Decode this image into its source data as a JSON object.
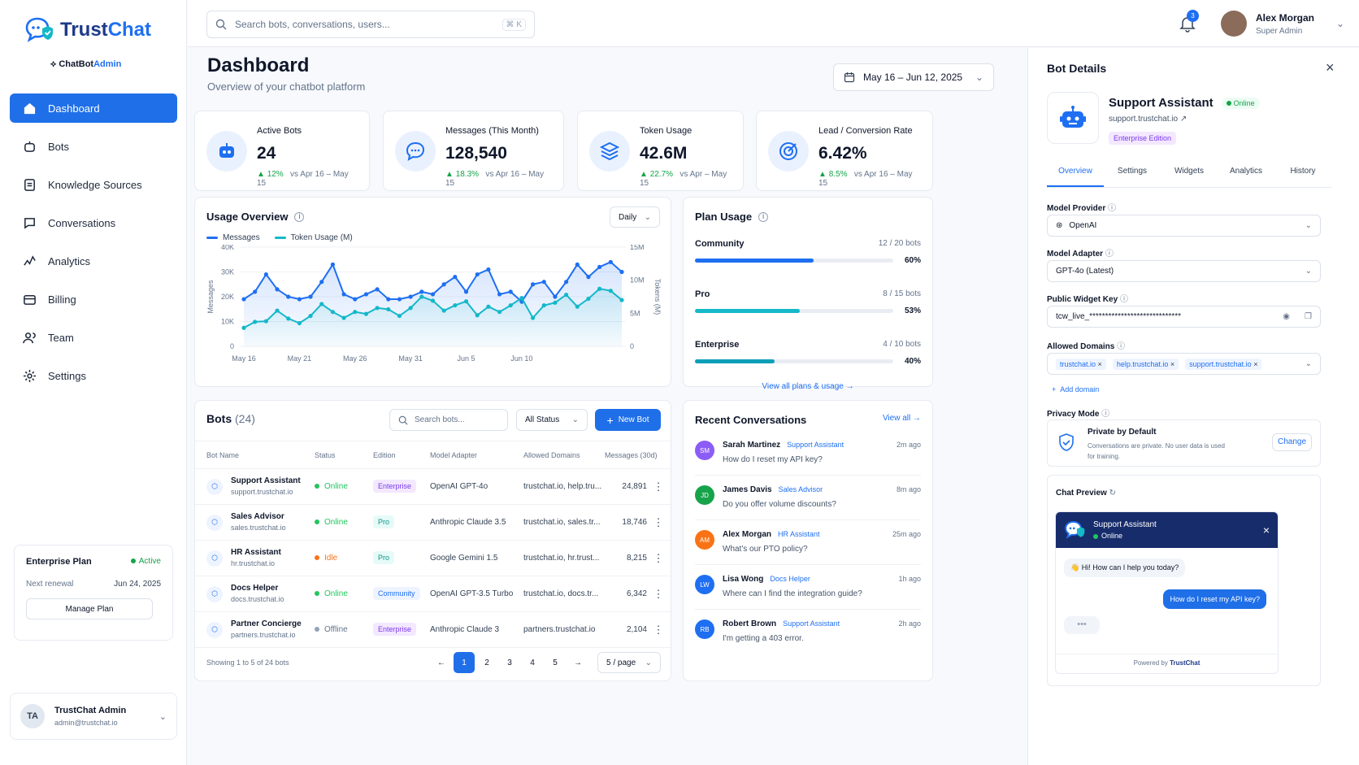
{
  "brand": {
    "name_a": "Trust",
    "name_b": "Chat",
    "sub_a": "ChatBot",
    "sub_b": "Admin"
  },
  "nav": [
    {
      "label": "Dashboard",
      "icon": "home-icon"
    },
    {
      "label": "Bots",
      "icon": "bot-icon"
    },
    {
      "label": "Knowledge Sources",
      "icon": "document-icon"
    },
    {
      "label": "Conversations",
      "icon": "chat-icon"
    },
    {
      "label": "Analytics",
      "icon": "analytics-icon"
    },
    {
      "label": "Billing",
      "icon": "billing-icon"
    },
    {
      "label": "Team",
      "icon": "team-icon"
    },
    {
      "label": "Settings",
      "icon": "gear-icon"
    }
  ],
  "plan": {
    "name": "Enterprise Plan",
    "status": "Active",
    "renew_label": "Next renewal",
    "renew_date": "Jun 24, 2025",
    "button": "Manage Plan"
  },
  "account": {
    "initials": "TA",
    "name": "TrustChat Admin",
    "email": "admin@trustchat.io"
  },
  "topbar": {
    "search_placeholder": "Search bots, conversations, users...",
    "shortcut": "⌘ K",
    "notif_count": "3",
    "user_name": "Alex Morgan",
    "user_role": "Super Admin"
  },
  "page": {
    "title": "Dashboard",
    "subtitle": "Overview of your chatbot platform",
    "date_range": "May 16 – Jun 12, 2025"
  },
  "kpis": [
    {
      "label": "Active Bots",
      "value": "24",
      "delta": "12%",
      "compare": "vs Apr 16 – May 15"
    },
    {
      "label": "Messages (This Month)",
      "value": "128,540",
      "delta": "18.3%",
      "compare": "vs Apr 16 – May 15"
    },
    {
      "label": "Token Usage",
      "value": "42.6M",
      "delta": "22.7%",
      "compare": "vs Apr – May 15"
    },
    {
      "label": "Lead / Conversion Rate",
      "value": "6.42%",
      "delta": "8.5%",
      "compare": "vs Apr 16 – May 15"
    }
  ],
  "usage": {
    "title": "Usage Overview",
    "period": "Daily"
  },
  "chart_data": {
    "type": "line",
    "series": [
      {
        "name": "Messages",
        "axis": "left",
        "color": "#1e6ff2",
        "values": [
          19,
          22,
          29,
          23,
          20,
          19,
          20,
          26,
          33,
          21,
          19,
          21,
          23,
          19,
          19,
          20,
          22,
          21,
          25,
          28,
          22,
          29,
          31,
          21,
          22,
          18,
          25,
          26,
          20,
          26,
          33,
          28,
          32,
          34,
          30
        ]
      },
      {
        "name": "Token Usage (M)",
        "axis": "right",
        "color": "#14b8c9",
        "values": [
          2.8,
          3.7,
          3.8,
          5.4,
          4.2,
          3.5,
          4.6,
          6.4,
          5.2,
          4.3,
          5.2,
          4.9,
          5.8,
          5.6,
          4.6,
          5.8,
          7.5,
          6.9,
          5.4,
          6.2,
          6.8,
          4.7,
          6.0,
          5.2,
          6.2,
          7.3,
          4.3,
          6.2,
          6.6,
          7.8,
          6.0,
          7.2,
          8.7,
          8.4,
          7.0
        ]
      }
    ],
    "x_ticks": [
      "May 16",
      "May 21",
      "May 26",
      "May 31",
      "Jun 5",
      "Jun 10"
    ],
    "ylabel": "Messages",
    "y2label": "Tokens (M)",
    "y_ticks": [
      "40K",
      "30K",
      "20K",
      "10K",
      "0"
    ],
    "y2_ticks": [
      "15M",
      "10M",
      "5M",
      "0"
    ],
    "ylim": [
      0,
      40000
    ],
    "y2lim": [
      0,
      15
    ]
  },
  "plan_usage": {
    "title": "Plan Usage",
    "link": "View all plans & usage",
    "rows": [
      {
        "name": "Community",
        "count": "12 / 20 bots",
        "pct": "60%",
        "frac": 0.6,
        "color": "#1e6ff2"
      },
      {
        "name": "Pro",
        "count": "8 / 15 bots",
        "pct": "53%",
        "frac": 0.53,
        "color": "#14b8c9"
      },
      {
        "name": "Enterprise",
        "count": "4 / 10 bots",
        "pct": "40%",
        "frac": 0.4,
        "color": "#0e9fb8"
      }
    ]
  },
  "bots": {
    "title": "Bots",
    "count": "(24)",
    "search_placeholder": "Search bots...",
    "status_filter": "All Status",
    "new_button": "New Bot",
    "columns": [
      "Bot Name",
      "Status",
      "Edition",
      "Model Adapter",
      "Allowed Domains",
      "Messages (30d)"
    ],
    "rows": [
      {
        "name": "Support Assistant",
        "domain": "support.trustchat.io",
        "status": "Online",
        "edition": "Enterprise",
        "model": "OpenAI GPT-4o",
        "domains": "trustchat.io, help.tru...",
        "messages": "24,891"
      },
      {
        "name": "Sales Advisor",
        "domain": "sales.trustchat.io",
        "status": "Online",
        "edition": "Pro",
        "model": "Anthropic Claude 3.5",
        "domains": "trustchat.io, sales.tr...",
        "messages": "18,746"
      },
      {
        "name": "HR Assistant",
        "domain": "hr.trustchat.io",
        "status": "Idle",
        "edition": "Pro",
        "model": "Google Gemini 1.5",
        "domains": "trustchat.io, hr.trust...",
        "messages": "8,215"
      },
      {
        "name": "Docs Helper",
        "domain": "docs.trustchat.io",
        "status": "Online",
        "edition": "Community",
        "model": "OpenAI GPT-3.5 Turbo",
        "domains": "trustchat.io, docs.tr...",
        "messages": "6,342"
      },
      {
        "name": "Partner Concierge",
        "domain": "partners.trustchat.io",
        "status": "Offline",
        "edition": "Enterprise",
        "model": "Anthropic Claude 3",
        "domains": "partners.trustchat.io",
        "messages": "2,104"
      }
    ],
    "showing": "Showing 1 to 5 of 24 bots",
    "pages": [
      "1",
      "2",
      "3",
      "4",
      "5"
    ],
    "per_page": "5 / page"
  },
  "recent": {
    "title": "Recent Conversations",
    "view_all": "View all",
    "items": [
      {
        "initials": "SM",
        "name": "Sarah Martinez",
        "bot": "Support Assistant",
        "msg": "How do I reset my API key?",
        "time": "2m ago",
        "color": "#8b5cf6"
      },
      {
        "initials": "JD",
        "name": "James Davis",
        "bot": "Sales Advisor",
        "msg": "Do you offer volume discounts?",
        "time": "8m ago",
        "color": "#16a34a"
      },
      {
        "initials": "AM",
        "name": "Alex Morgan",
        "bot": "HR Assistant",
        "msg": "What's our PTO policy?",
        "time": "25m ago",
        "color": "#f97316"
      },
      {
        "initials": "LW",
        "name": "Lisa Wong",
        "bot": "Docs Helper",
        "msg": "Where can I find the integration guide?",
        "time": "1h ago",
        "color": "#1e6ff2"
      },
      {
        "initials": "RB",
        "name": "Robert Brown",
        "bot": "Support Assistant",
        "msg": "I'm getting a 403 error.",
        "time": "2h ago",
        "color": "#1e6ff2"
      }
    ]
  },
  "details": {
    "title": "Bot Details",
    "bot_name": "Support Assistant",
    "status": "Online",
    "domain": "support.trustchat.io",
    "edition": "Enterprise Edition",
    "tabs": [
      "Overview",
      "Settings",
      "Widgets",
      "Analytics",
      "History"
    ],
    "provider_label": "Model Provider",
    "provider": "OpenAI",
    "adapter_label": "Model Adapter",
    "adapter": "GPT-4o (Latest)",
    "key_label": "Public Widget Key",
    "key": "tcw_live_*****************************",
    "domains_label": "Allowed Domains",
    "domains": [
      "trustchat.io",
      "help.trustchat.io",
      "support.trustchat.io"
    ],
    "add_domain": "Add domain",
    "privacy_label": "Privacy Mode",
    "privacy_title": "Private by Default",
    "privacy_desc_1": "Conversations are private. No user data is used",
    "privacy_desc_2": "for training.",
    "change": "Change",
    "preview_label": "Chat Preview",
    "preview_bot": "Support Assistant",
    "preview_status": "Online",
    "greeting": "👋 Hi! How can I help you today?",
    "user_msg": "How do I reset my API key?",
    "powered": "Powered by",
    "powered_brand": "TrustChat"
  }
}
